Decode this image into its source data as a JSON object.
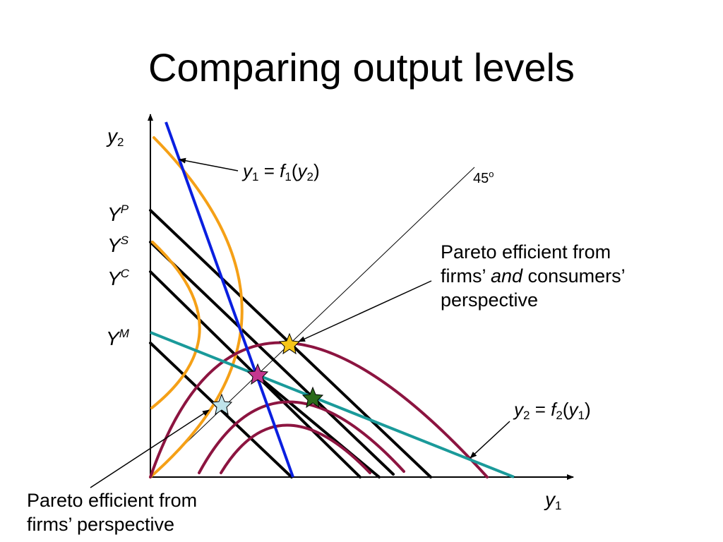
{
  "title": "Comparing output levels",
  "axes": {
    "y_var": "y",
    "y_sub": "2",
    "x_var": "y",
    "x_sub": "1"
  },
  "levels": {
    "yp": {
      "letter": "Y",
      "sup": "P"
    },
    "ys": {
      "letter": "Y",
      "sup": "S"
    },
    "yc": {
      "letter": "Y",
      "sup": "C"
    },
    "ym": {
      "letter": "Y",
      "sup": "M"
    }
  },
  "f1_label": {
    "lhs_var": "y",
    "lhs_sub": "1",
    "eq": " = ",
    "f": "f",
    "f_sub": "1",
    "open": "(",
    "arg_var": "y",
    "arg_sub": "2",
    "close": ")"
  },
  "f2_label": {
    "lhs_var": "y",
    "lhs_sub": "2",
    "eq": " = ",
    "f": "f",
    "f_sub": "2",
    "open": "(",
    "arg_var": "y",
    "arg_sub": "1",
    "close": ")"
  },
  "angle_label": {
    "value": "45",
    "sup": "o"
  },
  "note_both": {
    "line1": "Pareto efficient from",
    "line2_a": "firms’ ",
    "line2_b": "and",
    "line2_c": " consumers’",
    "line3": "perspective"
  },
  "note_firms": {
    "line1": "Pareto efficient from",
    "line2": "firms’ perspective"
  },
  "colors": {
    "axis": "#000000",
    "isoline": "#000000",
    "f1_line": "#0a1fe0",
    "f2_line": "#1a9a9a",
    "firm_curves": "#f5a016",
    "consumer_curves": "#8c1440",
    "star_both": "#f5c518",
    "star_magenta": "#c4378f",
    "star_green": "#2a6a1a",
    "star_light": "#bfe3ea"
  }
}
